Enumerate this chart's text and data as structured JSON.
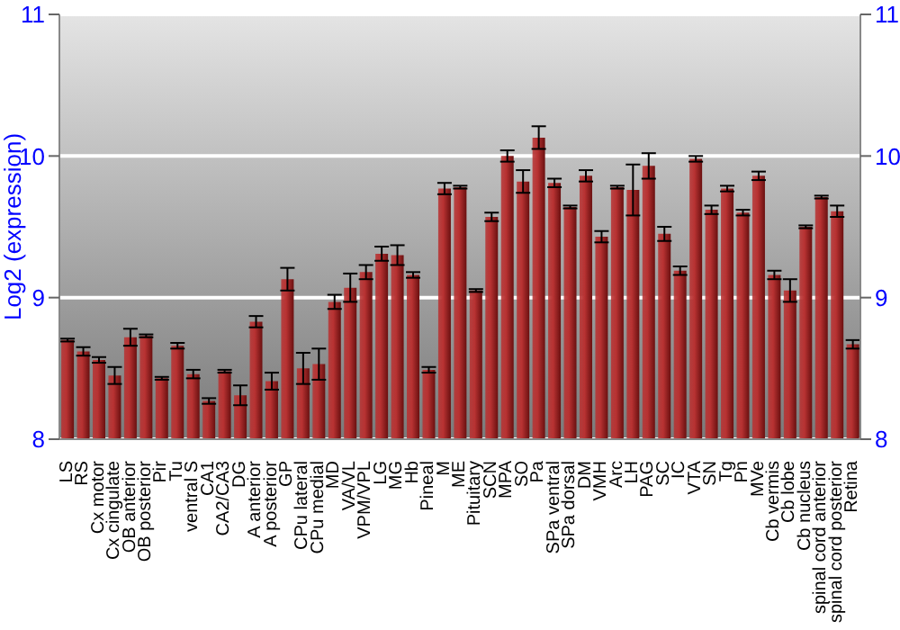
{
  "chart_data": {
    "type": "bar",
    "ylabel": "Log2 (expression)",
    "categories": [
      "LS",
      "RS",
      "Cx motor",
      "Cx cingulate",
      "OB anterior",
      "OB posterior",
      "Pir",
      "Tu",
      "ventral S",
      "CA1",
      "CA2/CA3",
      "DG",
      "A anterior",
      "A posterior",
      "GP",
      "CPu lateral",
      "CPu medial",
      "MD",
      "VA/VL",
      "VPM/VPL",
      "LG",
      "MG",
      "Hb",
      "Pineal",
      "M",
      "ME",
      "Pituitary",
      "SCN",
      "MPA",
      "SO",
      "Pa",
      "SPa ventral",
      "SPa dorsal",
      "DM",
      "VMH",
      "Arc",
      "LH",
      "PAG",
      "SC",
      "IC",
      "VTA",
      "SN",
      "Tg",
      "Pn",
      "MVe",
      "Cb vermis",
      "Cb lobe",
      "Cb nucleus",
      "spinal cord anterior",
      "spinal cord posterior",
      "Retina"
    ],
    "values": [
      8.7,
      8.62,
      8.56,
      8.45,
      8.72,
      8.73,
      8.43,
      8.66,
      8.46,
      8.27,
      8.48,
      8.31,
      8.83,
      8.41,
      9.13,
      8.5,
      8.53,
      8.97,
      9.07,
      9.18,
      9.31,
      9.3,
      9.16,
      8.49,
      9.77,
      9.78,
      9.05,
      9.57,
      10.0,
      9.82,
      10.13,
      9.81,
      9.64,
      9.86,
      9.43,
      9.78,
      9.76,
      9.93,
      9.45,
      9.19,
      9.98,
      9.62,
      9.77,
      9.6,
      9.86,
      9.16,
      9.05,
      9.5,
      9.71,
      9.61,
      8.67
    ],
    "errors": [
      0.01,
      0.03,
      0.02,
      0.06,
      0.06,
      0.01,
      0.01,
      0.02,
      0.03,
      0.02,
      0.01,
      0.07,
      0.04,
      0.06,
      0.08,
      0.11,
      0.11,
      0.05,
      0.1,
      0.05,
      0.05,
      0.07,
      0.02,
      0.02,
      0.04,
      0.01,
      0.01,
      0.03,
      0.04,
      0.08,
      0.08,
      0.03,
      0.01,
      0.04,
      0.04,
      0.01,
      0.18,
      0.09,
      0.05,
      0.03,
      0.02,
      0.03,
      0.02,
      0.02,
      0.03,
      0.03,
      0.08,
      0.01,
      0.01,
      0.04,
      0.03
    ],
    "color": "#b83232",
    "ylim": [
      8,
      11
    ],
    "yticks": [
      8,
      9,
      10,
      11
    ],
    "y2lim": [
      8,
      11
    ],
    "y2ticks": [
      8,
      9,
      10,
      11
    ],
    "grid": "y"
  }
}
